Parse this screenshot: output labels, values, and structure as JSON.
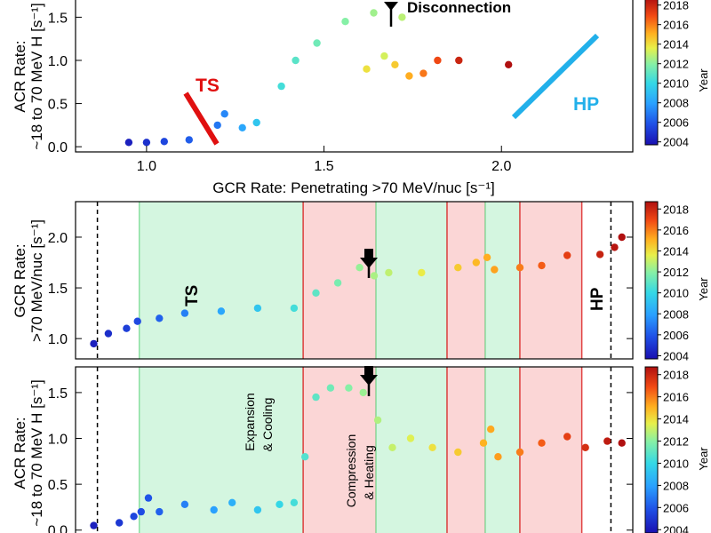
{
  "colorbar": {
    "label": "Year",
    "ticks": [
      "2004",
      "2006",
      "2008",
      "2010",
      "2012",
      "2014",
      "2016",
      "2018"
    ],
    "colors": [
      "#1a0fb0",
      "#1f4fe6",
      "#2aa0ff",
      "#34d8e6",
      "#86f0a6",
      "#e8f04a",
      "#ffb020",
      "#f24a14",
      "#b01010"
    ]
  },
  "chart_data": [
    {
      "type": "scatter",
      "panel": "top",
      "xlabel": "GCR Rate: Penetrating >70 MeV/nuc [s⁻¹]",
      "ylabel_line1": "ACR Rate:",
      "ylabel_line2": "~18 to 70 MeV H [s⁻¹]",
      "xlim": [
        0.8,
        2.37
      ],
      "ylim": [
        -0.06,
        1.72
      ],
      "xticks": [
        "1.0",
        "1.5",
        "2.0"
      ],
      "yticks": [
        "0.0",
        "0.5",
        "1.0",
        "1.5"
      ],
      "annotations": {
        "ts": "TS",
        "hp": "HP",
        "disconnection": "Disconnection"
      },
      "color_scale": "year 2004 to 2019",
      "points": [
        {
          "year": 2004.5,
          "x": 0.95,
          "y": 0.05
        },
        {
          "year": 2005.0,
          "x": 1.0,
          "y": 0.05
        },
        {
          "year": 2005.6,
          "x": 1.05,
          "y": 0.06
        },
        {
          "year": 2006.2,
          "x": 1.12,
          "y": 0.08
        },
        {
          "year": 2006.8,
          "x": 1.2,
          "y": 0.25
        },
        {
          "year": 2007.2,
          "x": 1.22,
          "y": 0.38
        },
        {
          "year": 2008.0,
          "x": 1.27,
          "y": 0.22
        },
        {
          "year": 2009.0,
          "x": 1.31,
          "y": 0.28
        },
        {
          "year": 2010.0,
          "x": 1.38,
          "y": 0.7
        },
        {
          "year": 2010.5,
          "x": 1.42,
          "y": 1.0
        },
        {
          "year": 2011.0,
          "x": 1.48,
          "y": 1.2
        },
        {
          "year": 2011.5,
          "x": 1.56,
          "y": 1.45
        },
        {
          "year": 2012.0,
          "x": 1.64,
          "y": 1.55
        },
        {
          "year": 2012.5,
          "x": 1.72,
          "y": 1.5
        },
        {
          "year": 2013.0,
          "x": 1.67,
          "y": 1.05
        },
        {
          "year": 2013.8,
          "x": 1.62,
          "y": 0.9
        },
        {
          "year": 2014.5,
          "x": 1.7,
          "y": 0.95
        },
        {
          "year": 2015.3,
          "x": 1.74,
          "y": 0.82
        },
        {
          "year": 2016.3,
          "x": 1.78,
          "y": 0.85
        },
        {
          "year": 2017.2,
          "x": 1.82,
          "y": 1.0
        },
        {
          "year": 2018.3,
          "x": 1.88,
          "y": 1.0
        },
        {
          "year": 2019.0,
          "x": 2.02,
          "y": 0.95
        }
      ]
    },
    {
      "type": "scatter",
      "panel": "middle",
      "ylabel_line1": "GCR Rate:",
      "ylabel_line2": ">70 MeV/nuc [s⁻¹]",
      "ylim": [
        0.8,
        2.35
      ],
      "yticks": [
        "1.0",
        "1.5",
        "2.0"
      ],
      "labels": {
        "ts": "TS",
        "hp": "HP"
      },
      "x_units": "year 2004.0 to 2019.3",
      "points": [
        {
          "year": 2004.5,
          "y": 0.95
        },
        {
          "year": 2004.9,
          "y": 1.05
        },
        {
          "year": 2005.4,
          "y": 1.1
        },
        {
          "year": 2005.7,
          "y": 1.17
        },
        {
          "year": 2006.3,
          "y": 1.2
        },
        {
          "year": 2007.0,
          "y": 1.25
        },
        {
          "year": 2008.0,
          "y": 1.27
        },
        {
          "year": 2009.0,
          "y": 1.3
        },
        {
          "year": 2010.0,
          "y": 1.3
        },
        {
          "year": 2010.6,
          "y": 1.45
        },
        {
          "year": 2011.2,
          "y": 1.55
        },
        {
          "year": 2011.8,
          "y": 1.7
        },
        {
          "year": 2012.2,
          "y": 1.62
        },
        {
          "year": 2012.6,
          "y": 1.65
        },
        {
          "year": 2013.5,
          "y": 1.65
        },
        {
          "year": 2014.5,
          "y": 1.7
        },
        {
          "year": 2015.0,
          "y": 1.75
        },
        {
          "year": 2015.3,
          "y": 1.8
        },
        {
          "year": 2015.5,
          "y": 1.68
        },
        {
          "year": 2016.2,
          "y": 1.7
        },
        {
          "year": 2016.8,
          "y": 1.72
        },
        {
          "year": 2017.5,
          "y": 1.82
        },
        {
          "year": 2018.4,
          "y": 1.83
        },
        {
          "year": 2018.8,
          "y": 1.9
        },
        {
          "year": 2019.0,
          "y": 2.0
        }
      ]
    },
    {
      "type": "scatter",
      "panel": "bottom",
      "ylabel_line1": "ACR Rate:",
      "ylabel_line2": "~18 to 70 MeV H [s⁻¹]",
      "ylim": [
        -0.08,
        1.78
      ],
      "yticks": [
        "0.0",
        "0.5",
        "1.0",
        "1.5"
      ],
      "region_labels": {
        "expansion_1": "Expansion",
        "expansion_2": "& Cooling",
        "compression_1": "Compression",
        "compression_2": "& Heating"
      },
      "x_units": "year 2004.0 to 2019.3",
      "points": [
        {
          "year": 2004.5,
          "y": 0.05
        },
        {
          "year": 2005.2,
          "y": 0.08
        },
        {
          "year": 2005.6,
          "y": 0.15
        },
        {
          "year": 2005.8,
          "y": 0.2
        },
        {
          "year": 2006.0,
          "y": 0.35
        },
        {
          "year": 2006.3,
          "y": 0.2
        },
        {
          "year": 2007.0,
          "y": 0.28
        },
        {
          "year": 2007.8,
          "y": 0.22
        },
        {
          "year": 2008.3,
          "y": 0.3
        },
        {
          "year": 2009.0,
          "y": 0.22
        },
        {
          "year": 2009.6,
          "y": 0.28
        },
        {
          "year": 2010.0,
          "y": 0.3
        },
        {
          "year": 2010.3,
          "y": 0.8
        },
        {
          "year": 2010.6,
          "y": 1.45
        },
        {
          "year": 2011.0,
          "y": 1.55
        },
        {
          "year": 2011.5,
          "y": 1.55
        },
        {
          "year": 2011.9,
          "y": 1.5
        },
        {
          "year": 2012.3,
          "y": 1.2
        },
        {
          "year": 2012.7,
          "y": 0.9
        },
        {
          "year": 2013.2,
          "y": 1.0
        },
        {
          "year": 2013.8,
          "y": 0.9
        },
        {
          "year": 2014.5,
          "y": 0.85
        },
        {
          "year": 2015.2,
          "y": 0.95
        },
        {
          "year": 2015.4,
          "y": 1.1
        },
        {
          "year": 2015.6,
          "y": 0.8
        },
        {
          "year": 2016.2,
          "y": 0.85
        },
        {
          "year": 2016.8,
          "y": 0.95
        },
        {
          "year": 2017.5,
          "y": 1.02
        },
        {
          "year": 2018.0,
          "y": 0.9
        },
        {
          "year": 2018.6,
          "y": 0.97
        },
        {
          "year": 2019.0,
          "y": 0.95
        }
      ]
    }
  ],
  "time_regions": [
    {
      "type": "expansion",
      "start": 2005.75,
      "end": 2010.25
    },
    {
      "type": "compression",
      "start": 2010.25,
      "end": 2012.25
    },
    {
      "type": "expansion",
      "start": 2012.25,
      "end": 2014.2
    },
    {
      "type": "compression",
      "start": 2014.2,
      "end": 2015.25
    },
    {
      "type": "expansion",
      "start": 2015.25,
      "end": 2016.2
    },
    {
      "type": "compression",
      "start": 2016.2,
      "end": 2017.9
    }
  ],
  "boundaries": {
    "ts": 2004.6,
    "hp": 2018.7
  },
  "disconnection_year": 2011.6
}
